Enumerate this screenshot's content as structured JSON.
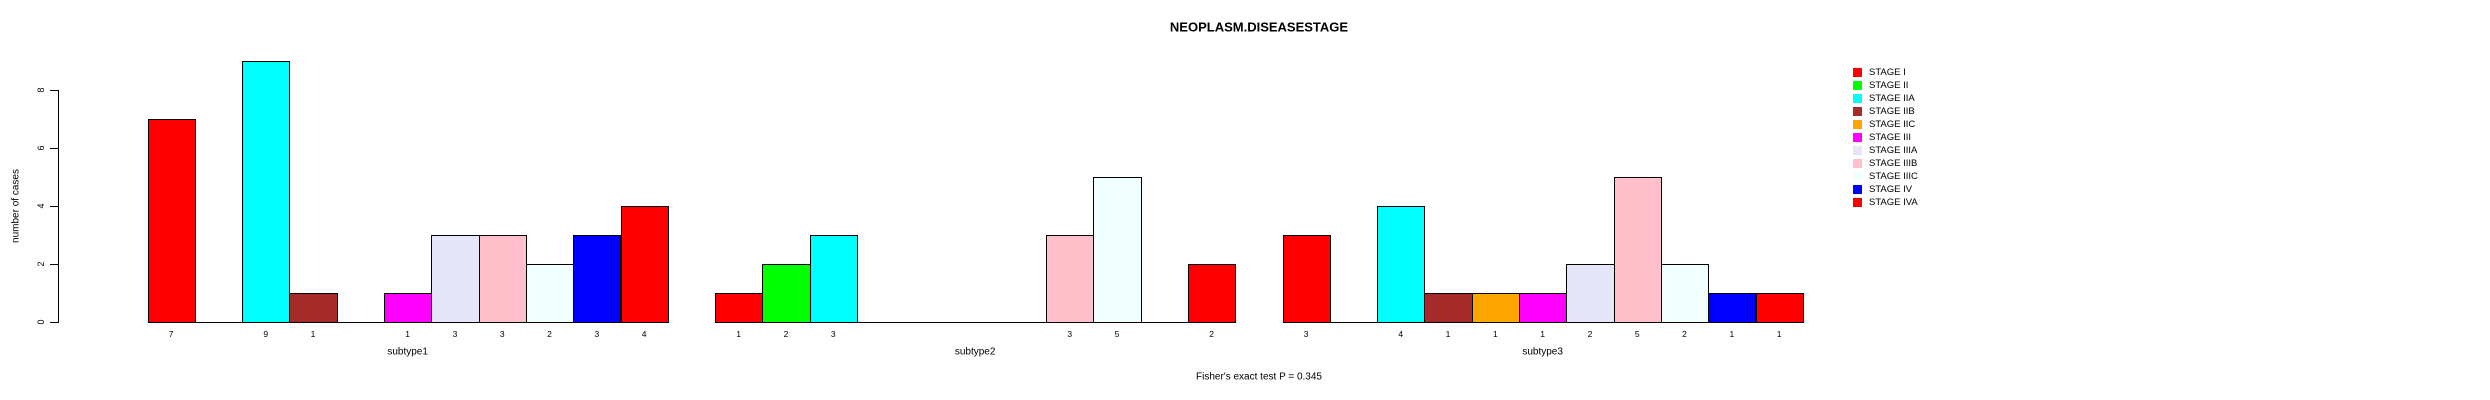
{
  "chart_data": {
    "type": "bar",
    "title": "NEOPLASM.DISEASESTAGE",
    "ylabel": "number of cases",
    "xlabel": "",
    "footer": "Fisher's exact test P = 0.345",
    "ylim": [
      0,
      9
    ],
    "yticks": [
      0,
      2,
      4,
      6,
      8
    ],
    "grid": false,
    "legend_position": "right",
    "bar_border_color": "#000000",
    "background_color": "#ffffff",
    "series": [
      {
        "name": "STAGE I",
        "color": "#FF0000"
      },
      {
        "name": "STAGE II",
        "color": "#00FF00"
      },
      {
        "name": "STAGE IIA",
        "color": "#00FFFF"
      },
      {
        "name": "STAGE IIB",
        "color": "#A52A2A"
      },
      {
        "name": "STAGE IIC",
        "color": "#FFA500"
      },
      {
        "name": "STAGE III",
        "color": "#FF00FF"
      },
      {
        "name": "STAGE IIIA",
        "color": "#E6E6FA"
      },
      {
        "name": "STAGE IIIB",
        "color": "#FFC0CB"
      },
      {
        "name": "STAGE IIIC",
        "color": "#F0FFFF"
      },
      {
        "name": "STAGE IV",
        "color": "#0000FF"
      },
      {
        "name": "STAGE IVA",
        "color": "#FF0000"
      }
    ],
    "categories": [
      "subtype1",
      "subtype2",
      "subtype3"
    ],
    "groups": [
      {
        "label": "subtype1",
        "values": [
          7,
          0,
          9,
          1,
          0,
          1,
          3,
          3,
          2,
          3,
          4
        ]
      },
      {
        "label": "subtype2",
        "values": [
          1,
          2,
          3,
          0,
          0,
          0,
          0,
          3,
          5,
          0,
          2
        ]
      },
      {
        "label": "subtype3",
        "values": [
          3,
          0,
          4,
          1,
          1,
          1,
          2,
          5,
          2,
          1,
          1
        ]
      }
    ]
  }
}
